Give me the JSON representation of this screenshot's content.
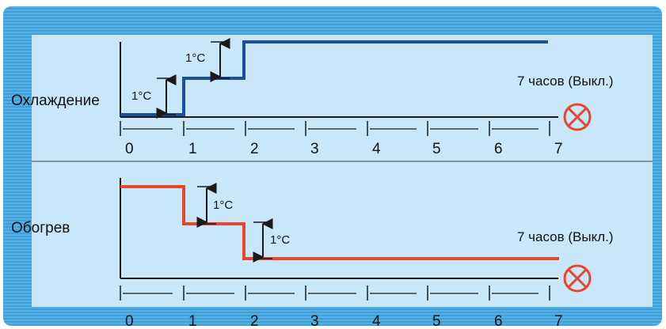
{
  "panels": [
    {
      "id": "cooling",
      "label": "Охлаждение",
      "step_label_1": "1°C",
      "step_label_2": "1°C",
      "off_label": "7 часов (Выкл.)",
      "line_color": "#1c4f9c",
      "off_icon": "off-circle-x-icon"
    },
    {
      "id": "heating",
      "label": "Обогрев",
      "step_label_1": "1°C",
      "step_label_2": "1°C",
      "off_label": "7 часов (Выкл.)",
      "line_color": "#e8452f",
      "off_icon": "off-circle-x-icon"
    }
  ],
  "axis_ticks": [
    "0",
    "1",
    "2",
    "3",
    "4",
    "5",
    "6",
    "7"
  ],
  "colors": {
    "frame_blue": "#3f9fd8",
    "panel_bg": "#c9e7f8",
    "axis": "#1a1a1a",
    "off_icon": "#e8452f"
  }
}
